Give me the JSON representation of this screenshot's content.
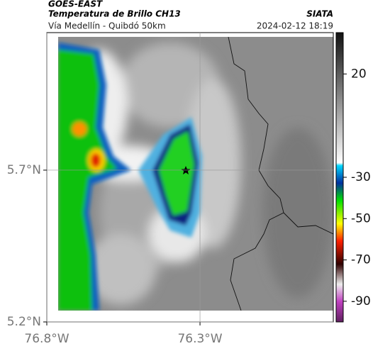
{
  "header": {
    "title": "GOES-EAST",
    "subtitle": "Temperatura de Brillo CH13",
    "source": "SIATA",
    "route": "Vía Medellín - Quibdó 50km",
    "datetime": "2024-02-12 18:19"
  },
  "map": {
    "xlim": [
      -76.8,
      -75.865
    ],
    "ylim": [
      5.2,
      6.153
    ],
    "xticks": [
      {
        "value": -76.8,
        "label": "76.8°W"
      },
      {
        "value": -76.3,
        "label": "76.3°W"
      }
    ],
    "yticks": [
      {
        "value": 5.7,
        "label": "5.7°N"
      },
      {
        "value": 5.2,
        "label": "5.2°N"
      }
    ]
  },
  "colorbar": {
    "lim": [
      40,
      -100
    ],
    "ticks": [
      20,
      -30,
      -50,
      -70,
      -90
    ]
  }
}
